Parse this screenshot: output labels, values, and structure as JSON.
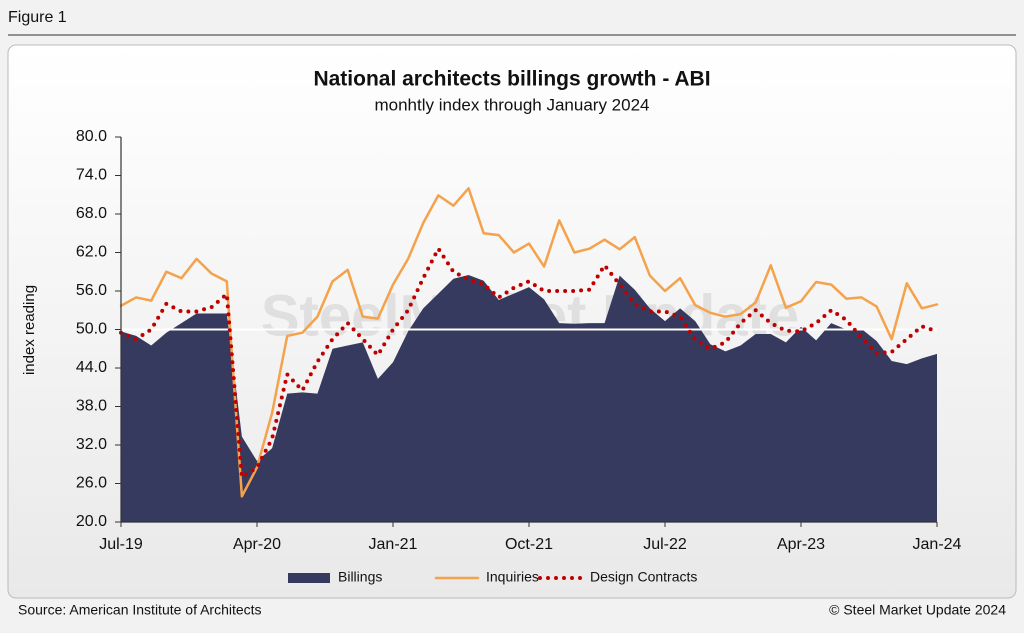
{
  "header": "Figure 1",
  "chart_data": {
    "type": "line",
    "title": "National architects billings growth - ABI",
    "subtitle": "monhtly index through January 2024",
    "y_label": "index reading",
    "watermark": "SteelMarket Update",
    "categories": [
      "Jul-19",
      null,
      null,
      null,
      null,
      null,
      null,
      null,
      null,
      "Apr-20",
      null,
      null,
      null,
      null,
      null,
      null,
      null,
      null,
      "Jan-21",
      null,
      null,
      null,
      null,
      null,
      null,
      null,
      null,
      "Oct-21",
      null,
      null,
      null,
      null,
      null,
      null,
      null,
      null,
      "Jul-22",
      null,
      null,
      null,
      null,
      null,
      null,
      null,
      null,
      "Apr-23",
      null,
      null,
      null,
      null,
      null,
      null,
      null,
      null,
      "Jan-24"
    ],
    "ylim": [
      20,
      80
    ],
    "yticks": [
      {
        "value": 20,
        "label": "20.0"
      },
      {
        "value": 26,
        "label": "26.0"
      },
      {
        "value": 32,
        "label": "32.0"
      },
      {
        "value": 38,
        "label": "38.0"
      },
      {
        "value": 44,
        "label": "44.0"
      },
      {
        "value": 50,
        "label": "50.0"
      },
      {
        "value": 56,
        "label": "56.0"
      },
      {
        "value": 62,
        "label": "62.0"
      },
      {
        "value": 68,
        "label": "68.0"
      },
      {
        "value": 74,
        "label": "74.0"
      },
      {
        "value": 80,
        "label": "80.0"
      }
    ],
    "reference_line": 50,
    "grid": false,
    "legend": "bottom",
    "series": [
      {
        "name": "Billings",
        "type": "area",
        "color": "#363a5e",
        "values": [
          49.7,
          49,
          47.5,
          49.5,
          51,
          52.5,
          52.5,
          52.5,
          33.3,
          29.5,
          31.5,
          40,
          40.2,
          40,
          47,
          47.5,
          48,
          42.3,
          44.9,
          49.7,
          53.3,
          55.6,
          57.9,
          58.5,
          57.6,
          54.6,
          55.6,
          56.6,
          54.7,
          51,
          50.9,
          51,
          51,
          58.4,
          56.2,
          53.3,
          51.3,
          53.3,
          51.3,
          47.7,
          46.6,
          47.5,
          49.3,
          49.3,
          48,
          50.4,
          48.3,
          51,
          50,
          50.1,
          48.2,
          45.1,
          44.6,
          45.5,
          46.2
        ]
      },
      {
        "name": "Inquiries",
        "type": "line",
        "color": "#f4a24b",
        "values": [
          53.7,
          55,
          54.5,
          59,
          58,
          61,
          58.7,
          57.5,
          24,
          28.5,
          37,
          49,
          49.5,
          52,
          57.5,
          59.3,
          52,
          51.7,
          57,
          61,
          66.6,
          70.9,
          69.3,
          72,
          65,
          64.7,
          62,
          63.4,
          59.8,
          67,
          62,
          62.6,
          64,
          62.5,
          64.4,
          58.4,
          56,
          58,
          53.8,
          52.6,
          52,
          52.4,
          54.2,
          60,
          53.4,
          54.4,
          57.4,
          57,
          54.8,
          55,
          53.6,
          48.5,
          57.2,
          53.3,
          53.9
        ]
      },
      {
        "name": "Design Contracts",
        "type": "dotted",
        "color": "#c00000",
        "values": [
          49.5,
          48.5,
          50,
          54,
          52.8,
          52.8,
          53.5,
          55.5,
          27,
          28.5,
          33,
          43,
          40.5,
          45,
          48.5,
          51,
          48.5,
          46,
          50,
          53,
          58,
          62.6,
          59,
          57.8,
          57,
          55,
          56.5,
          57.5,
          56,
          56,
          56,
          56.2,
          60,
          57,
          54,
          52.8,
          52.8,
          52,
          48.4,
          47,
          48,
          51,
          53,
          51,
          49.8,
          49.7,
          51,
          53,
          51.5,
          48.7,
          46.3,
          46.5,
          48.5,
          50.5,
          49.7
        ]
      }
    ]
  },
  "footer": {
    "source": "Source: American Institute of Architects",
    "copyright": "© Steel Market Update 2024"
  }
}
